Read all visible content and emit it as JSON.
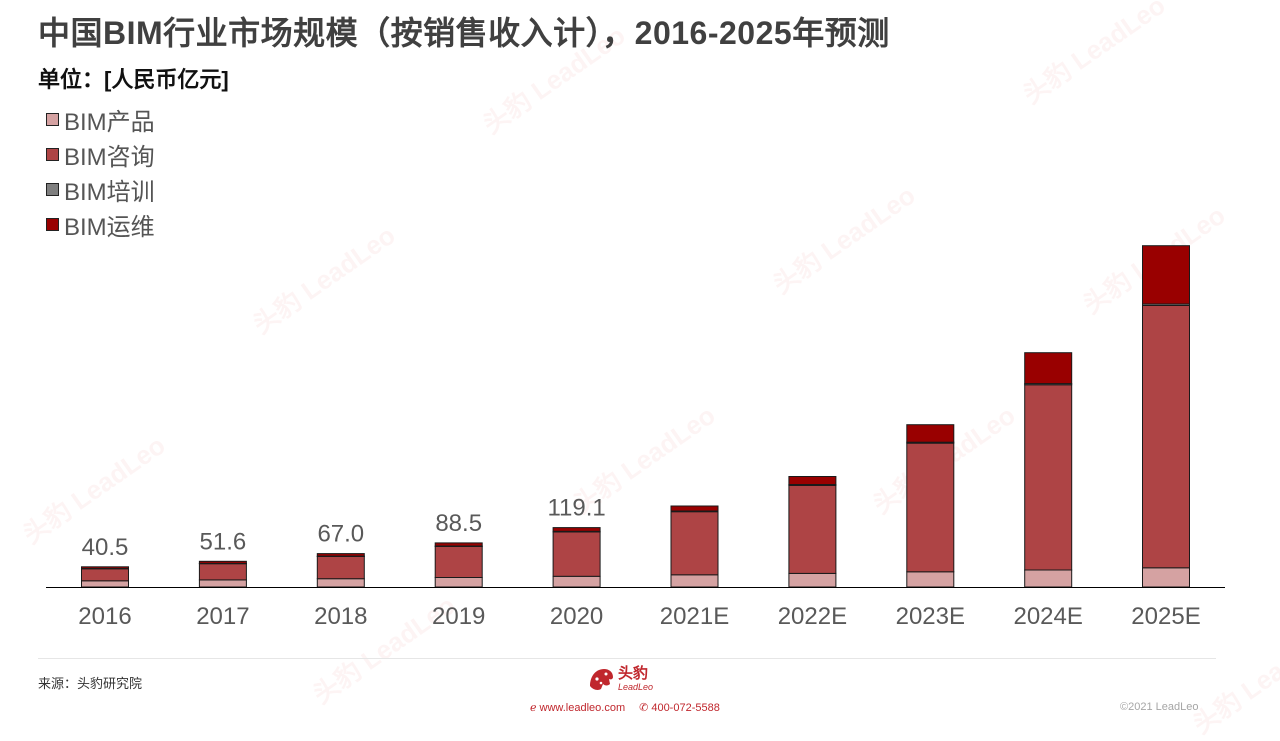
{
  "title": "中国BIM行业市场规模（按销售收入计），2016-2025年预测",
  "unit": "单位：[人民币亿元]",
  "colors": {
    "product": "#d5a2a2",
    "consulting": "#ae4445",
    "training": "#7f7f7f",
    "ops": "#990000",
    "axis": "#000000",
    "label": "#595959"
  },
  "chart_data": {
    "type": "bar",
    "stacked": true,
    "categories": [
      "2016",
      "2017",
      "2018",
      "2019",
      "2020",
      "2021E",
      "2022E",
      "2023E",
      "2024E",
      "2025E"
    ],
    "series": [
      {
        "name": "BIM产品",
        "values": [
          12.5,
          14.3,
          16.6,
          19.0,
          21.4,
          24.5,
          27.3,
          30.5,
          34.0,
          38.5
        ]
      },
      {
        "name": "BIM咨询",
        "values": [
          24.0,
          32.4,
          44.5,
          62.2,
          88.9,
          126.5,
          176.5,
          258.0,
          371.5,
          526.0
        ]
      },
      {
        "name": "BIM培训",
        "values": [
          0.5,
          0.7,
          0.9,
          1.1,
          1.3,
          1.5,
          1.8,
          2.1,
          2.5,
          3.0
        ]
      },
      {
        "name": "BIM运维",
        "values": [
          3.5,
          4.2,
          5.0,
          6.2,
          7.5,
          10.0,
          16.0,
          35.0,
          62.0,
          117.0
        ]
      }
    ],
    "total_labels": [
      "40.5",
      "51.6",
      "67.0",
      "88.5",
      "119.1",
      "",
      "",
      "",
      "",
      ""
    ],
    "ylim": [
      0,
      720
    ],
    "legend": "top-left",
    "grid": false
  },
  "footer": {
    "source": "来源：头豹研究院",
    "brand_cn": "头豹",
    "brand_en": "LeadLeo",
    "website": "www.leadleo.com",
    "phone": "400-072-5588",
    "copyright": "©2021 LeadLeo"
  },
  "icons": {
    "website": "e-icon",
    "phone": "phone-icon",
    "logo": "leopard-logo-icon"
  }
}
